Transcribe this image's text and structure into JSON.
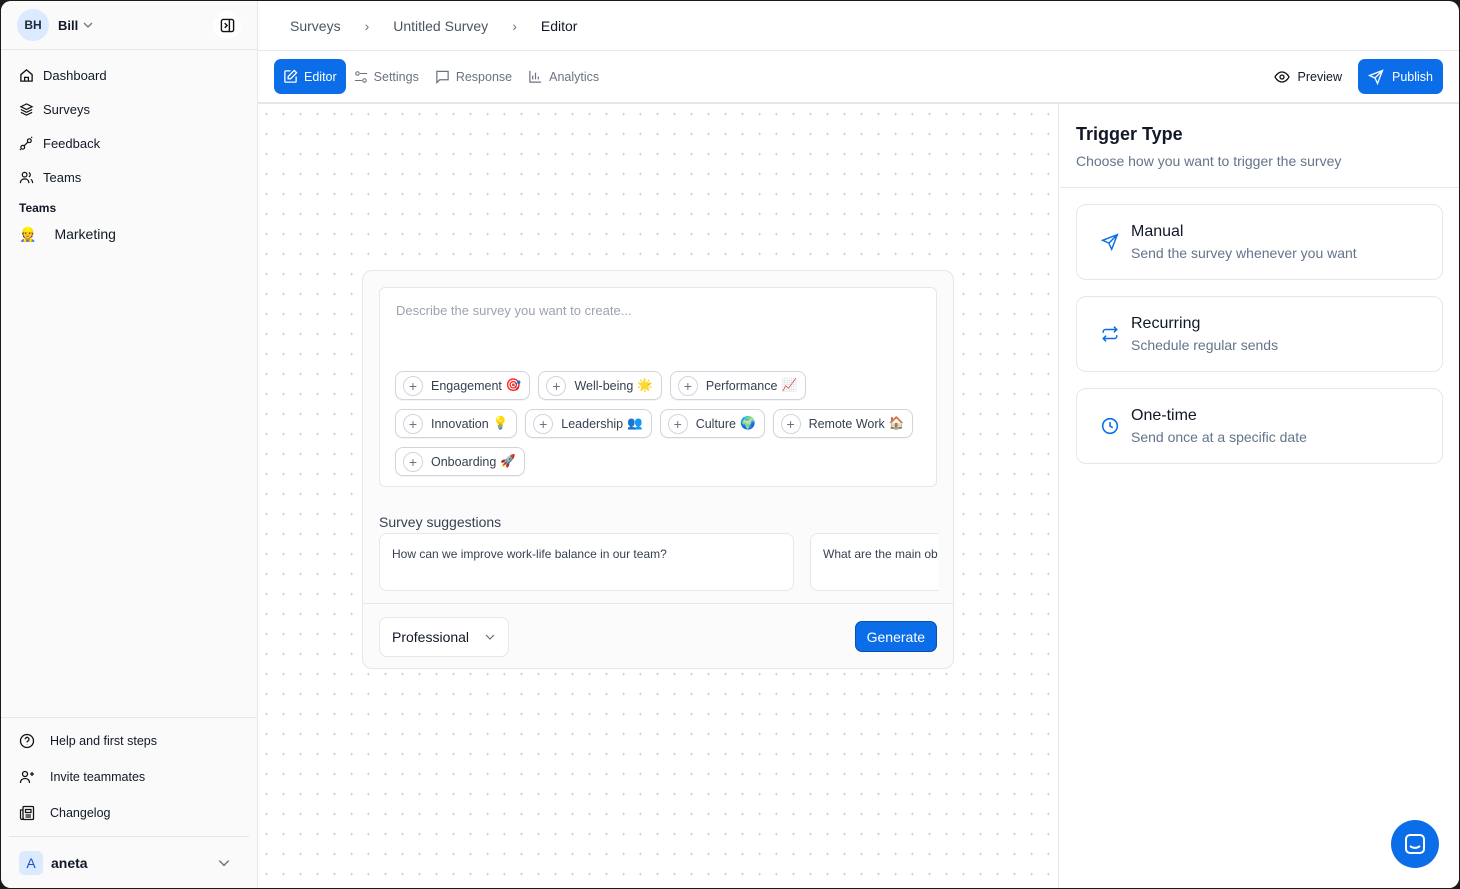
{
  "user": {
    "initials": "BH",
    "name": "Bill"
  },
  "sidebar": {
    "items": [
      {
        "label": "Dashboard",
        "icon": "home-icon"
      },
      {
        "label": "Surveys",
        "icon": "layers-icon"
      },
      {
        "label": "Feedback",
        "icon": "feedback-icon"
      },
      {
        "label": "Teams",
        "icon": "users-icon"
      }
    ],
    "teams_label": "Teams",
    "teams": [
      {
        "label": "Marketing",
        "emoji": "👷"
      }
    ],
    "bottom": [
      {
        "label": "Help and first steps",
        "icon": "help-icon"
      },
      {
        "label": "Invite teammates",
        "icon": "user-plus-icon"
      },
      {
        "label": "Changelog",
        "icon": "newspaper-icon"
      }
    ],
    "account": {
      "initial": "A",
      "name": "aneta"
    }
  },
  "breadcrumb": [
    "Surveys",
    "Untitled Survey",
    "Editor"
  ],
  "toolbar": {
    "tabs": [
      "Editor",
      "Settings",
      "Response",
      "Analytics"
    ],
    "active_tab": "Editor",
    "preview": "Preview",
    "publish": "Publish"
  },
  "colors": {
    "accent": "#0b6ee8"
  },
  "generator": {
    "placeholder": "Describe the survey you want to create...",
    "chips": [
      {
        "label": "Engagement",
        "emoji": "🎯"
      },
      {
        "label": "Well-being",
        "emoji": "🌟"
      },
      {
        "label": "Performance",
        "emoji": "📈"
      },
      {
        "label": "Innovation",
        "emoji": "💡"
      },
      {
        "label": "Leadership",
        "emoji": "👥"
      },
      {
        "label": "Culture",
        "emoji": "🌍"
      },
      {
        "label": "Remote Work",
        "emoji": "🏠"
      },
      {
        "label": "Onboarding",
        "emoji": "🚀"
      }
    ],
    "suggestions_title": "Survey suggestions",
    "suggestions": [
      "How can we improve work-life balance in our team?",
      "What are the main ob"
    ],
    "tone": "Professional",
    "generate": "Generate"
  },
  "trigger": {
    "title": "Trigger Type",
    "subtitle": "Choose how you want to trigger the survey",
    "options": [
      {
        "title": "Manual",
        "desc": "Send the survey whenever you want",
        "icon": "send-icon"
      },
      {
        "title": "Recurring",
        "desc": "Schedule regular sends",
        "icon": "repeat-icon"
      },
      {
        "title": "One-time",
        "desc": "Send once at a specific date",
        "icon": "clock-icon"
      }
    ]
  }
}
